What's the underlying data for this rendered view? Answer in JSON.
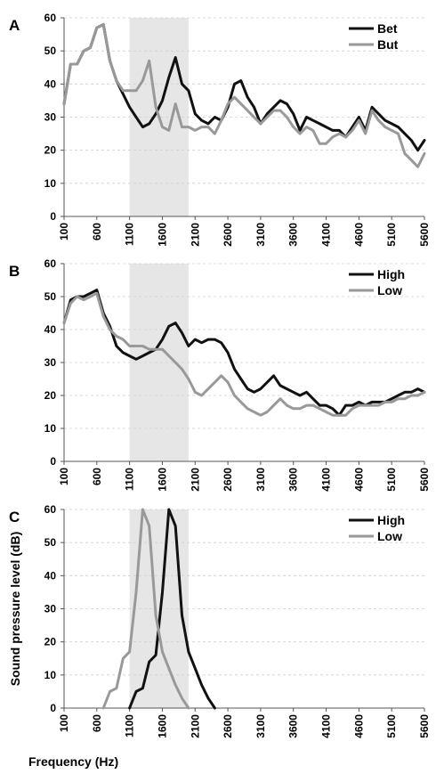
{
  "figure": {
    "xlabel": "Frequency (Hz)",
    "ylabel": "Sound pressure level (dB)"
  },
  "colors": {
    "dark": "#111111",
    "light": "#999999",
    "shade": "#e6e6e6"
  },
  "chart_data": [
    {
      "type": "line",
      "panel": "A",
      "xlim": [
        100,
        5600
      ],
      "ylim": [
        0,
        60
      ],
      "x_ticks": [
        100,
        600,
        1100,
        1600,
        2100,
        2600,
        3100,
        3600,
        4100,
        4600,
        5100,
        5600
      ],
      "y_ticks": [
        0,
        10,
        20,
        30,
        40,
        50,
        60
      ],
      "shaded_range": [
        1100,
        2000
      ],
      "legend_position": "top-right",
      "series": [
        {
          "name": "Bet",
          "color": "#111111",
          "x": [
            100,
            200,
            300,
            400,
            500,
            600,
            700,
            800,
            900,
            1000,
            1100,
            1200,
            1300,
            1400,
            1500,
            1600,
            1700,
            1800,
            1900,
            2000,
            2100,
            2200,
            2300,
            2400,
            2500,
            2600,
            2700,
            2800,
            2900,
            3000,
            3100,
            3200,
            3300,
            3400,
            3500,
            3600,
            3700,
            3800,
            3900,
            4000,
            4100,
            4200,
            4300,
            4400,
            4500,
            4600,
            4700,
            4800,
            4900,
            5000,
            5100,
            5200,
            5300,
            5400,
            5500,
            5600
          ],
          "values": [
            34,
            46,
            46,
            50,
            51,
            57,
            58,
            47,
            41,
            37,
            33,
            30,
            27,
            28,
            31,
            35,
            42,
            48,
            40,
            38,
            31,
            29,
            28,
            30,
            29,
            33,
            40,
            41,
            36,
            33,
            28,
            31,
            33,
            35,
            34,
            31,
            26,
            30,
            29,
            28,
            27,
            26,
            26,
            24,
            27,
            30,
            26,
            33,
            31,
            29,
            28,
            27,
            25,
            23,
            20,
            23
          ]
        },
        {
          "name": "But",
          "color": "#999999",
          "x": [
            100,
            200,
            300,
            400,
            500,
            600,
            700,
            800,
            900,
            1000,
            1100,
            1200,
            1300,
            1400,
            1500,
            1600,
            1700,
            1800,
            1900,
            2000,
            2100,
            2200,
            2300,
            2400,
            2500,
            2600,
            2700,
            2800,
            2900,
            3000,
            3100,
            3200,
            3300,
            3400,
            3500,
            3600,
            3700,
            3800,
            3900,
            4000,
            4100,
            4200,
            4300,
            4400,
            4500,
            4600,
            4700,
            4800,
            4900,
            5000,
            5100,
            5200,
            5300,
            5400,
            5500,
            5600
          ],
          "values": [
            34,
            46,
            46,
            50,
            51,
            57,
            58,
            47,
            41,
            38,
            38,
            38,
            41,
            47,
            33,
            27,
            26,
            34,
            27,
            27,
            26,
            27,
            27,
            25,
            29,
            34,
            36,
            34,
            32,
            30,
            28,
            30,
            32,
            32,
            30,
            27,
            25,
            27,
            26,
            22,
            22,
            24,
            25,
            24,
            26,
            29,
            25,
            32,
            29,
            27,
            26,
            25,
            19,
            17,
            15,
            19
          ]
        }
      ]
    },
    {
      "type": "line",
      "panel": "B",
      "xlim": [
        100,
        5600
      ],
      "ylim": [
        0,
        60
      ],
      "x_ticks": [
        100,
        600,
        1100,
        1600,
        2100,
        2600,
        3100,
        3600,
        4100,
        4600,
        5100,
        5600
      ],
      "y_ticks": [
        0,
        10,
        20,
        30,
        40,
        50,
        60
      ],
      "shaded_range": [
        1100,
        2000
      ],
      "legend_position": "top-right",
      "series": [
        {
          "name": "High",
          "color": "#111111",
          "x": [
            100,
            200,
            300,
            400,
            500,
            600,
            700,
            800,
            900,
            1000,
            1100,
            1200,
            1300,
            1400,
            1500,
            1600,
            1700,
            1800,
            1900,
            2000,
            2100,
            2200,
            2300,
            2400,
            2500,
            2600,
            2700,
            2800,
            2900,
            3000,
            3100,
            3200,
            3300,
            3400,
            3500,
            3600,
            3700,
            3800,
            3900,
            4000,
            4100,
            4200,
            4300,
            4400,
            4500,
            4600,
            4700,
            4800,
            4900,
            5000,
            5100,
            5200,
            5300,
            5400,
            5500,
            5600
          ],
          "values": [
            42,
            49,
            50,
            50,
            51,
            52,
            45,
            41,
            35,
            33,
            32,
            31,
            32,
            33,
            34,
            37,
            41,
            42,
            39,
            35,
            37,
            36,
            37,
            37,
            36,
            33,
            28,
            25,
            22,
            21,
            22,
            24,
            26,
            23,
            22,
            21,
            20,
            21,
            19,
            17,
            17,
            16,
            14,
            17,
            17,
            18,
            17,
            18,
            18,
            18,
            19,
            20,
            21,
            21,
            22,
            21
          ]
        },
        {
          "name": "Low",
          "color": "#999999",
          "x": [
            100,
            200,
            300,
            400,
            500,
            600,
            700,
            800,
            900,
            1000,
            1100,
            1200,
            1300,
            1400,
            1500,
            1600,
            1700,
            1800,
            1900,
            2000,
            2100,
            2200,
            2300,
            2400,
            2500,
            2600,
            2700,
            2800,
            2900,
            3000,
            3100,
            3200,
            3300,
            3400,
            3500,
            3600,
            3700,
            3800,
            3900,
            4000,
            4100,
            4200,
            4300,
            4400,
            4500,
            4600,
            4700,
            4800,
            4900,
            5000,
            5100,
            5200,
            5300,
            5400,
            5500,
            5600
          ],
          "values": [
            42,
            48,
            50,
            49,
            50,
            51,
            44,
            40,
            38,
            37,
            35,
            35,
            35,
            34,
            34,
            34,
            32,
            30,
            28,
            25,
            21,
            20,
            22,
            24,
            26,
            24,
            20,
            18,
            16,
            15,
            14,
            15,
            17,
            19,
            17,
            16,
            16,
            17,
            17,
            16,
            15,
            14,
            14,
            14,
            16,
            17,
            17,
            17,
            17,
            18,
            18,
            19,
            19,
            20,
            20,
            21
          ]
        }
      ]
    },
    {
      "type": "line",
      "panel": "C",
      "xlim": [
        100,
        5600
      ],
      "ylim": [
        0,
        60
      ],
      "x_ticks": [
        100,
        600,
        1100,
        1600,
        2100,
        2600,
        3100,
        3600,
        4100,
        4600,
        5100,
        5600
      ],
      "y_ticks": [
        0,
        10,
        20,
        30,
        40,
        50,
        60
      ],
      "shaded_range": [
        1100,
        2000
      ],
      "legend_position": "top-right",
      "series": [
        {
          "name": "High",
          "color": "#111111",
          "x": [
            1100,
            1200,
            1300,
            1400,
            1500,
            1600,
            1700,
            1800,
            1900,
            2000,
            2100,
            2200,
            2300,
            2400
          ],
          "values": [
            0,
            5,
            6,
            14,
            16,
            35,
            60,
            55,
            28,
            17,
            12,
            7,
            3,
            0
          ]
        },
        {
          "name": "Low",
          "color": "#999999",
          "x": [
            700,
            800,
            900,
            1000,
            1100,
            1200,
            1300,
            1400,
            1500,
            1600,
            1700,
            1800,
            1900,
            2000
          ],
          "values": [
            0,
            5,
            6,
            15,
            17,
            35,
            60,
            55,
            28,
            17,
            12,
            7,
            3,
            0
          ]
        }
      ]
    }
  ]
}
